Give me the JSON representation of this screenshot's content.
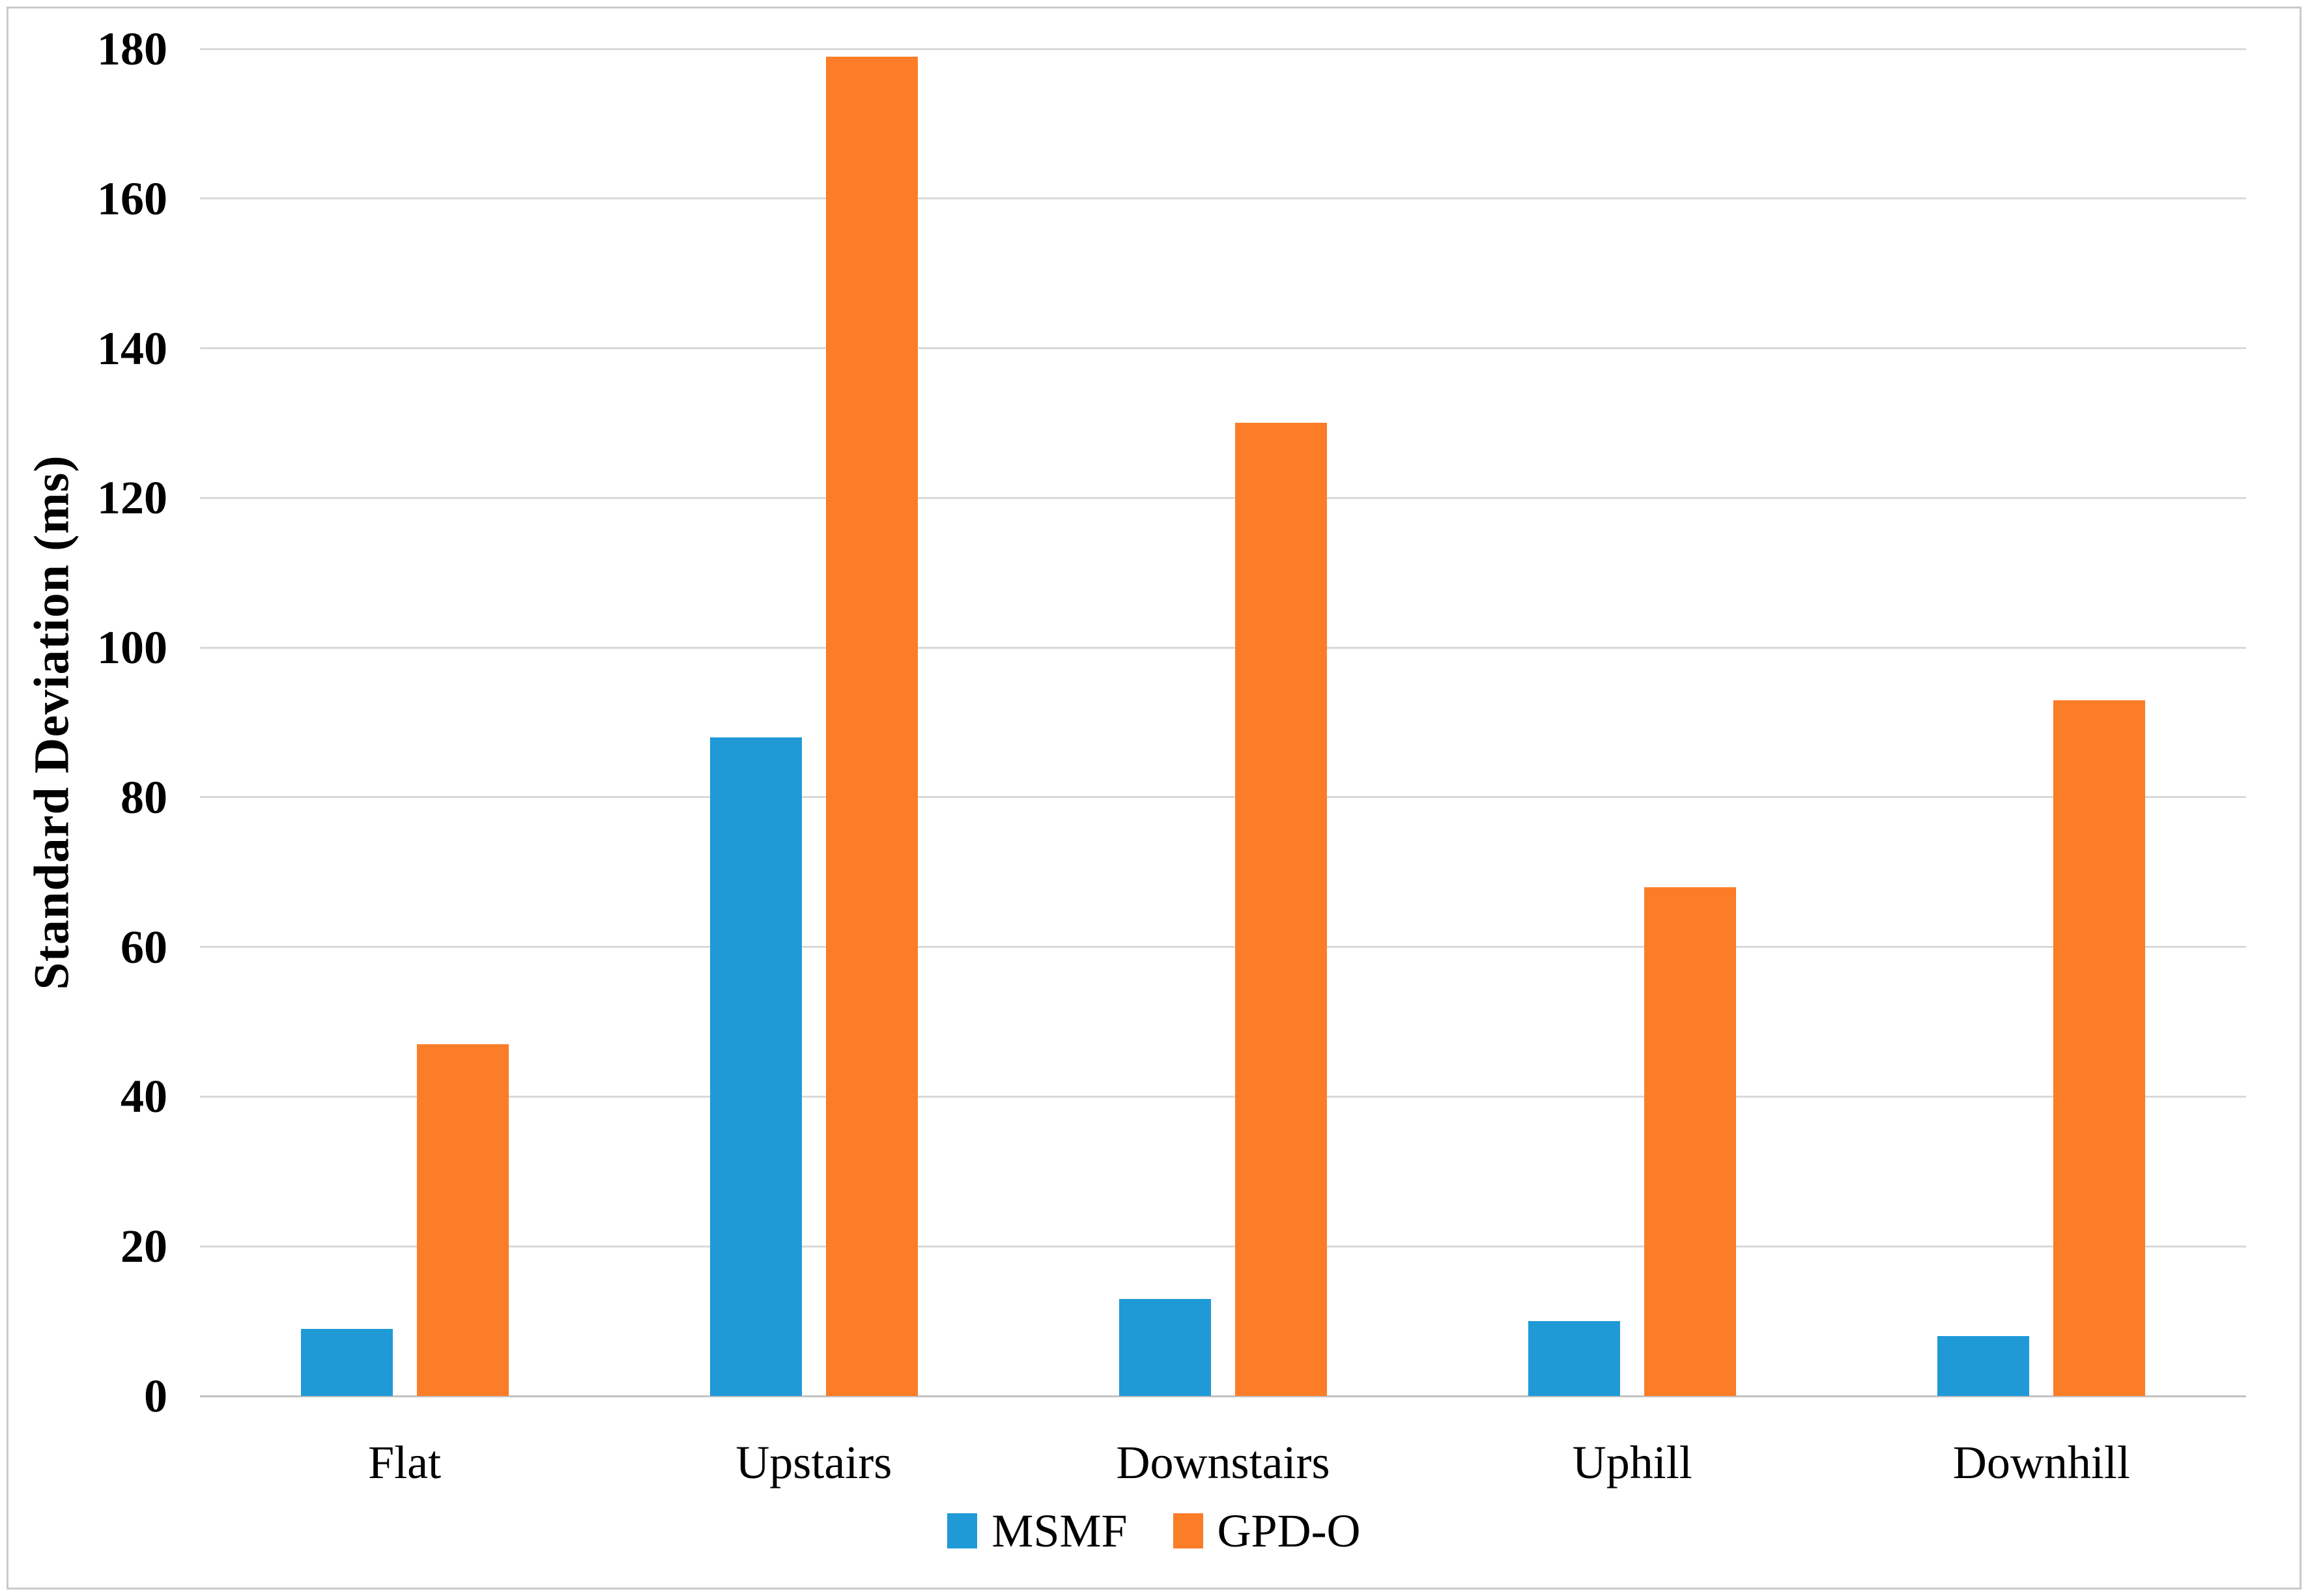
{
  "chart_data": {
    "type": "bar",
    "title": "",
    "categories": [
      "Flat",
      "Upstairs",
      "Downstairs",
      "Uphill",
      "Downhill"
    ],
    "series": [
      {
        "name": "MSMF",
        "color": "#1F9AD7",
        "values": [
          9,
          88,
          13,
          10,
          8
        ]
      },
      {
        "name": "GPD-O",
        "color": "#FB7D28",
        "values": [
          47,
          179,
          130,
          68,
          93
        ]
      }
    ],
    "xlabel": "",
    "ylabel": "Standard Deviation (ms)",
    "ylim": [
      0,
      180
    ],
    "yticks": [
      0,
      20,
      40,
      60,
      80,
      100,
      120,
      140,
      160,
      180
    ],
    "grid": true,
    "legend_position": "bottom-center"
  },
  "styles": {
    "background": "#FFFFFF",
    "grid_color": "#D9D9D9",
    "axis_line_color": "#C3C3C3",
    "frame_color": "#C9C9C9",
    "text_color": "#000000"
  }
}
